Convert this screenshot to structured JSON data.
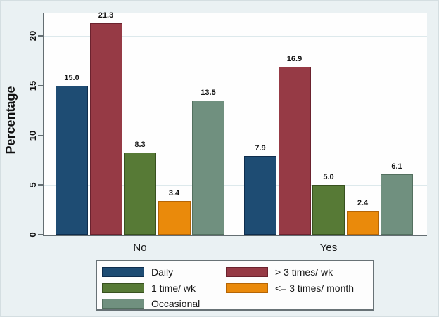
{
  "figure": {
    "background_color": "#eaf1f3",
    "plot_background_color": "#fefefe",
    "axis_color": "#646e72",
    "grid_color": "#dde9ec",
    "text_color": "#161616"
  },
  "chart_data": {
    "type": "bar",
    "title": "",
    "xlabel": "",
    "ylabel": "Percentage",
    "categories": [
      "No",
      "Yes"
    ],
    "series": [
      {
        "name": "Daily",
        "color": "#1e4c73",
        "border_color": "#0e2d4d",
        "values": [
          15.0,
          7.9
        ]
      },
      {
        "name": "> 3 times/ wk",
        "color": "#963a45",
        "border_color": "#6b222e",
        "values": [
          21.3,
          16.9
        ]
      },
      {
        "name": "1 time/ wk",
        "color": "#577a36",
        "border_color": "#38511f",
        "values": [
          8.3,
          5.0
        ]
      },
      {
        "name": "<= 3 times/ month",
        "color": "#ea8a0b",
        "border_color": "#b56505",
        "values": [
          3.4,
          2.4
        ]
      },
      {
        "name": "Occasional",
        "color": "#70907f",
        "border_color": "#53705f",
        "values": [
          13.5,
          6.1
        ]
      }
    ],
    "value_labels": [
      "15.0",
      "21.3",
      "8.3",
      "3.4",
      "13.5",
      "7.9",
      "16.9",
      "5.0",
      "2.4",
      "6.1"
    ],
    "yticks": [
      0,
      5,
      10,
      15,
      20
    ],
    "ylim": [
      0,
      22.3
    ],
    "grid": true,
    "legend_position": "bottom",
    "legend_columns": [
      [
        0,
        2,
        4
      ],
      [
        1,
        3
      ]
    ]
  }
}
